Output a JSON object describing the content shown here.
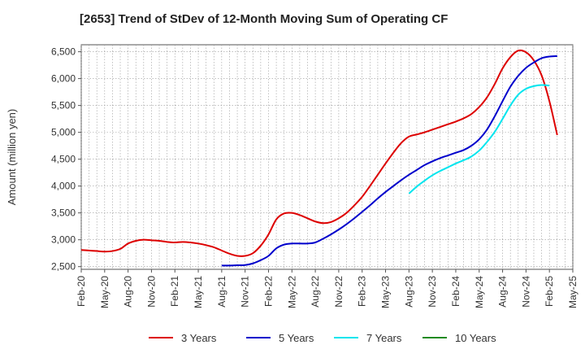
{
  "chart_data": {
    "type": "line",
    "title": "[2653]  Trend of StDev of 12-Month Moving Sum of Operating CF",
    "xlabel": "",
    "ylabel": "Amount (million yen)",
    "ylim": [
      2450,
      6630
    ],
    "yticks": [
      2500,
      3000,
      3500,
      4000,
      4500,
      5000,
      5500,
      6000,
      6500
    ],
    "ytick_labels": [
      "2,500",
      "3,000",
      "3,500",
      "4,000",
      "4,500",
      "5,000",
      "5,500",
      "6,000",
      "6,500"
    ],
    "x_start": "2020-02",
    "x_end": "2025-05",
    "xtick_labels": [
      "Feb-20",
      "May-20",
      "Aug-20",
      "Nov-20",
      "Feb-21",
      "May-21",
      "Aug-21",
      "Nov-21",
      "Feb-22",
      "May-22",
      "Aug-22",
      "Nov-22",
      "Feb-23",
      "May-23",
      "Aug-23",
      "Nov-23",
      "Feb-24",
      "May-24",
      "Aug-24",
      "Nov-24",
      "Feb-25",
      "May-25"
    ],
    "grid": true,
    "legend_position": "bottom",
    "series": [
      {
        "name": "3 Years",
        "color": "#dd0000",
        "start": "2020-02",
        "values": [
          2810,
          2800,
          2790,
          2780,
          2790,
          2830,
          2930,
          2980,
          3000,
          2990,
          2980,
          2960,
          2950,
          2960,
          2950,
          2930,
          2900,
          2860,
          2800,
          2740,
          2700,
          2700,
          2750,
          2890,
          3100,
          3380,
          3490,
          3500,
          3460,
          3400,
          3340,
          3310,
          3330,
          3400,
          3500,
          3640,
          3800,
          4000,
          4210,
          4420,
          4620,
          4800,
          4920,
          4960,
          5000,
          5050,
          5100,
          5150,
          5200,
          5260,
          5340,
          5470,
          5650,
          5900,
          6190,
          6400,
          6520,
          6490,
          6340,
          6060,
          5580,
          4950
        ]
      },
      {
        "name": "5 Years",
        "color": "#0000cc",
        "start": "2021-08",
        "values": [
          2520,
          2520,
          2525,
          2530,
          2560,
          2620,
          2700,
          2840,
          2910,
          2930,
          2930,
          2930,
          2950,
          3020,
          3100,
          3190,
          3290,
          3400,
          3520,
          3640,
          3770,
          3890,
          4000,
          4110,
          4210,
          4300,
          4390,
          4460,
          4520,
          4570,
          4620,
          4670,
          4750,
          4870,
          5050,
          5300,
          5580,
          5850,
          6050,
          6200,
          6300,
          6380,
          6410,
          6420
        ]
      },
      {
        "name": "7 Years",
        "color": "#00e5ee",
        "start": "2023-08",
        "values": [
          3860,
          3990,
          4100,
          4200,
          4280,
          4350,
          4420,
          4480,
          4550,
          4660,
          4820,
          5010,
          5250,
          5500,
          5700,
          5810,
          5860,
          5880,
          5870
        ]
      },
      {
        "name": "10 Years",
        "color": "#228b22",
        "start": "2025-02",
        "values": []
      }
    ]
  }
}
